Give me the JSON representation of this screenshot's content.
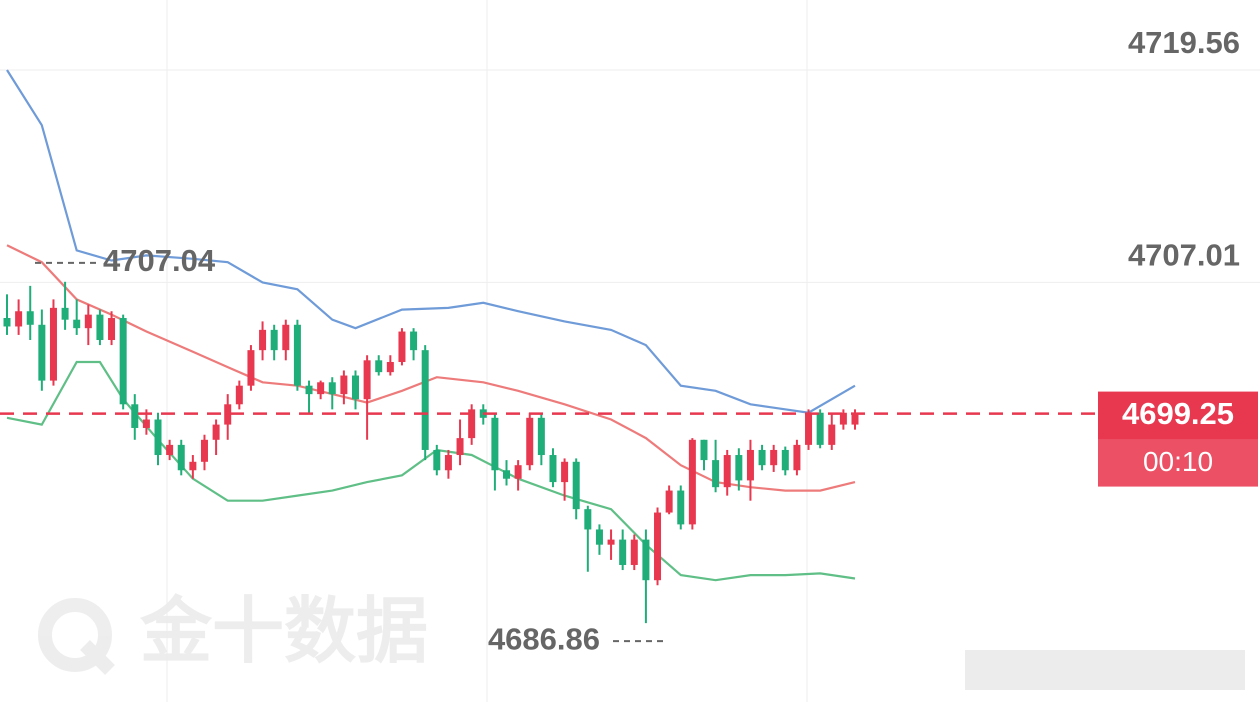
{
  "chart_data": {
    "type": "candlestick",
    "ylim": [
      4682.2,
      4723.7
    ],
    "yticks": [
      4719.56,
      4707.01
    ],
    "up_color": "#e8384f",
    "down_color": "#1fae79",
    "ohlc": [
      [
        4704.9,
        4706.3,
        4703.9,
        4704.4
      ],
      [
        4704.4,
        4706.0,
        4703.9,
        4705.3
      ],
      [
        4705.3,
        4706.8,
        4703.6,
        4704.5
      ],
      [
        4704.5,
        4705.4,
        4700.6,
        4701.2
      ],
      [
        4701.2,
        4706.0,
        4700.9,
        4705.5
      ],
      [
        4705.5,
        4707.04,
        4704.2,
        4704.8
      ],
      [
        4704.8,
        4706.0,
        4703.9,
        4704.3
      ],
      [
        4704.3,
        4705.7,
        4703.3,
        4705.1
      ],
      [
        4705.1,
        4705.4,
        4703.3,
        4703.6
      ],
      [
        4703.6,
        4705.3,
        4703.3,
        4704.9
      ],
      [
        4704.9,
        4705.1,
        4699.5,
        4699.8
      ],
      [
        4699.8,
        4700.4,
        4697.7,
        4698.4
      ],
      [
        4698.4,
        4699.5,
        4698.0,
        4698.9
      ],
      [
        4698.9,
        4699.3,
        4696.2,
        4696.8
      ],
      [
        4696.8,
        4697.7,
        4696.5,
        4697.4
      ],
      [
        4697.4,
        4697.7,
        4695.6,
        4695.9
      ],
      [
        4695.9,
        4696.8,
        4695.4,
        4696.4
      ],
      [
        4696.4,
        4698.0,
        4695.9,
        4697.7
      ],
      [
        4697.7,
        4698.9,
        4696.8,
        4698.6
      ],
      [
        4698.6,
        4700.4,
        4697.7,
        4699.8
      ],
      [
        4699.8,
        4701.2,
        4699.5,
        4700.9
      ],
      [
        4700.9,
        4703.3,
        4700.6,
        4703.0
      ],
      [
        4703.0,
        4704.7,
        4702.4,
        4704.2
      ],
      [
        4704.2,
        4704.5,
        4702.4,
        4703.0
      ],
      [
        4703.0,
        4704.8,
        4702.4,
        4704.5
      ],
      [
        4704.5,
        4704.8,
        4700.6,
        4700.9
      ],
      [
        4700.9,
        4701.2,
        4699.3,
        4700.4
      ],
      [
        4700.4,
        4701.2,
        4700.1,
        4701.1
      ],
      [
        4701.1,
        4701.4,
        4699.5,
        4700.4
      ],
      [
        4700.4,
        4701.8,
        4699.8,
        4701.5
      ],
      [
        4701.5,
        4701.8,
        4699.5,
        4700.1
      ],
      [
        4700.1,
        4702.7,
        4697.7,
        4702.4
      ],
      [
        4702.4,
        4702.7,
        4701.5,
        4701.7
      ],
      [
        4701.7,
        4702.7,
        4701.5,
        4702.3
      ],
      [
        4702.3,
        4704.3,
        4702.1,
        4704.1
      ],
      [
        4704.1,
        4704.3,
        4702.4,
        4703.0
      ],
      [
        4703.0,
        4703.3,
        4696.5,
        4697.1
      ],
      [
        4697.1,
        4697.4,
        4695.6,
        4695.9
      ],
      [
        4695.9,
        4697.1,
        4695.4,
        4696.8
      ],
      [
        4696.8,
        4698.9,
        4696.2,
        4697.8
      ],
      [
        4697.8,
        4699.8,
        4697.4,
        4699.5
      ],
      [
        4699.5,
        4699.8,
        4698.6,
        4699.0
      ],
      [
        4699.0,
        4699.2,
        4694.7,
        4695.9
      ],
      [
        4695.9,
        4696.5,
        4695.0,
        4695.4
      ],
      [
        4695.4,
        4696.5,
        4694.7,
        4696.2
      ],
      [
        4696.2,
        4699.3,
        4695.9,
        4699.0
      ],
      [
        4699.0,
        4699.3,
        4696.2,
        4696.8
      ],
      [
        4696.8,
        4697.2,
        4694.9,
        4695.2
      ],
      [
        4695.2,
        4696.6,
        4694.1,
        4696.4
      ],
      [
        4696.4,
        4696.6,
        4693.0,
        4693.6
      ],
      [
        4693.6,
        4693.8,
        4689.9,
        4692.4
      ],
      [
        4692.4,
        4692.7,
        4690.9,
        4691.5
      ],
      [
        4691.5,
        4692.4,
        4690.6,
        4691.8
      ],
      [
        4691.8,
        4692.4,
        4690.0,
        4690.3
      ],
      [
        4690.3,
        4692.1,
        4690.0,
        4691.8
      ],
      [
        4691.8,
        4692.4,
        4686.86,
        4689.4
      ],
      [
        4689.4,
        4693.7,
        4689.1,
        4693.4
      ],
      [
        4693.4,
        4695.0,
        4693.3,
        4694.7
      ],
      [
        4694.7,
        4695.0,
        4692.4,
        4692.7
      ],
      [
        4692.7,
        4697.8,
        4692.4,
        4697.7
      ],
      [
        4697.7,
        4697.7,
        4695.9,
        4696.5
      ],
      [
        4696.5,
        4697.7,
        4694.6,
        4694.9
      ],
      [
        4694.9,
        4697.1,
        4694.4,
        4696.8
      ],
      [
        4696.8,
        4697.2,
        4694.7,
        4695.3
      ],
      [
        4695.3,
        4697.7,
        4694.1,
        4697.1
      ],
      [
        4697.1,
        4697.4,
        4695.9,
        4696.2
      ],
      [
        4696.2,
        4697.4,
        4695.8,
        4697.1
      ],
      [
        4697.1,
        4697.3,
        4695.6,
        4695.9
      ],
      [
        4695.9,
        4697.7,
        4695.6,
        4697.4
      ],
      [
        4697.4,
        4699.5,
        4697.1,
        4699.3
      ],
      [
        4699.3,
        4699.5,
        4697.2,
        4697.4
      ],
      [
        4697.4,
        4699.3,
        4697.1,
        4698.6
      ],
      [
        4698.6,
        4699.5,
        4698.3,
        4699.3
      ],
      [
        4698.6,
        4699.5,
        4698.3,
        4699.25
      ]
    ],
    "bands": [
      {
        "color": "#6f9bd8",
        "x": [
          0,
          3,
          6,
          9,
          12,
          16,
          19,
          22,
          25,
          28,
          30,
          34,
          38,
          41,
          44,
          48,
          52,
          55,
          58,
          61,
          64,
          66,
          69,
          73
        ],
        "values": [
          4719.56,
          4716.3,
          4708.9,
          4708.3,
          4708.6,
          4708.4,
          4708.2,
          4707.0,
          4706.6,
          4704.8,
          4704.3,
          4705.4,
          4705.5,
          4705.8,
          4705.3,
          4704.7,
          4704.2,
          4703.3,
          4700.9,
          4700.6,
          4699.8,
          4699.6,
          4699.3,
          4700.9
        ]
      },
      {
        "color": "#ee7b7b",
        "x": [
          0,
          3,
          6,
          9,
          12,
          16,
          19,
          22,
          25,
          28,
          31,
          34,
          37,
          41,
          44,
          48,
          52,
          55,
          58,
          61,
          64,
          67,
          70,
          73
        ],
        "values": [
          4709.2,
          4708.2,
          4706.0,
          4705.1,
          4704.1,
          4702.9,
          4702.0,
          4701.1,
          4700.9,
          4700.4,
          4699.9,
          4700.6,
          4701.4,
          4701.1,
          4700.6,
          4699.8,
          4698.9,
          4697.8,
          4696.2,
          4695.2,
          4694.9,
          4694.7,
          4694.7,
          4695.2
        ]
      },
      {
        "color": "#5fbf86",
        "x": [
          0,
          3,
          6,
          8,
          10,
          13,
          16,
          19,
          22,
          25,
          28,
          31,
          34,
          37,
          40,
          44,
          48,
          52,
          55,
          58,
          61,
          64,
          67,
          70,
          73
        ],
        "values": [
          4699.0,
          4698.6,
          4702.3,
          4702.3,
          4700.1,
          4697.7,
          4695.4,
          4694.1,
          4694.1,
          4694.4,
          4694.7,
          4695.2,
          4695.6,
          4697.1,
          4696.8,
          4695.4,
          4694.4,
          4693.6,
          4691.5,
          4689.7,
          4689.4,
          4689.7,
          4689.7,
          4689.8,
          4689.5
        ]
      }
    ],
    "countdown": "00:10",
    "watermark": "金十数据"
  }
}
